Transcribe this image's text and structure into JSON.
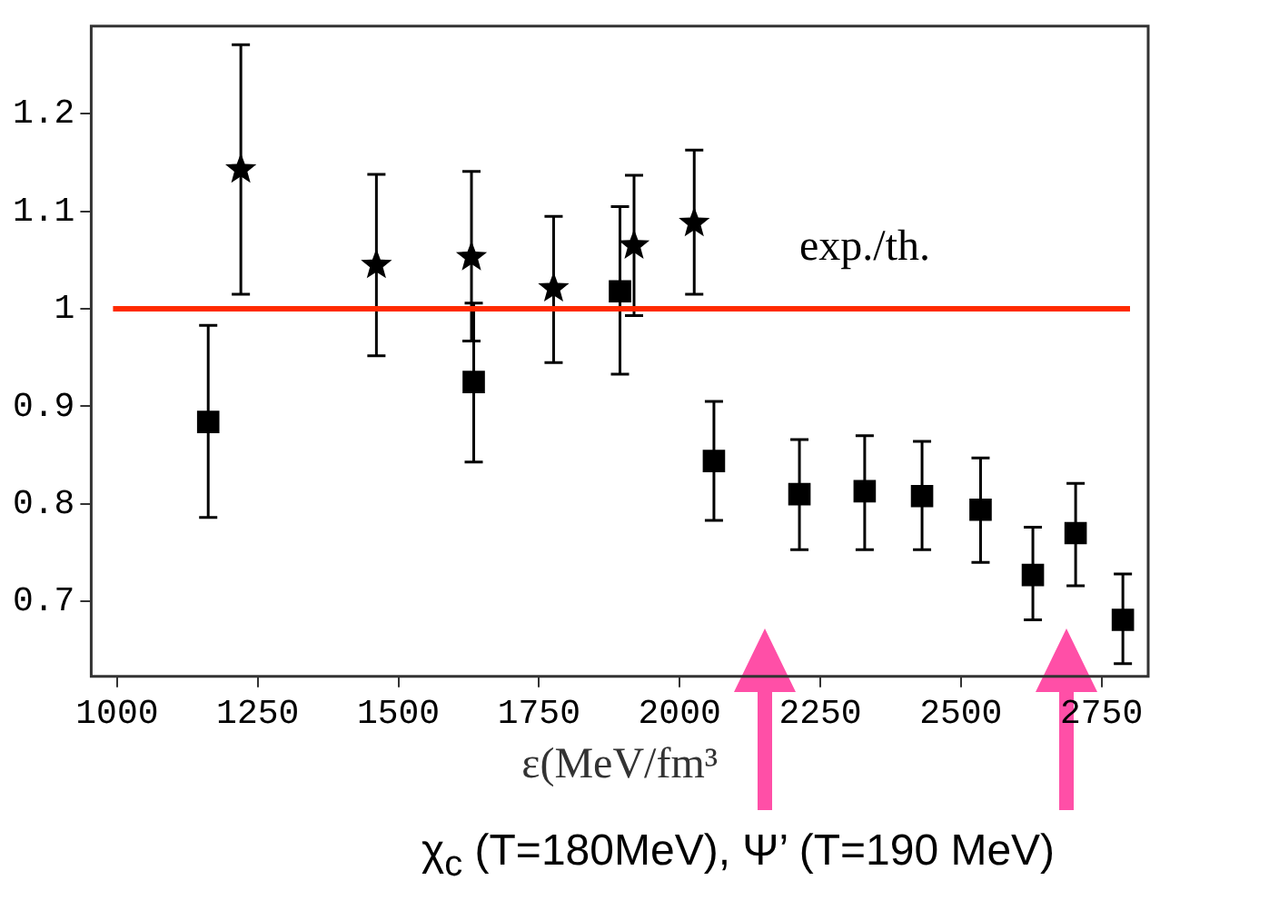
{
  "chart_data": {
    "type": "scatter",
    "xlabel": "ε(MeV/fm³",
    "xlim": [
      954,
      2833
    ],
    "xticks": [
      1000,
      1250,
      1500,
      1750,
      2000,
      2250,
      2500,
      2750
    ],
    "ylim": [
      0.623,
      1.29
    ],
    "yticks": [
      0.7,
      0.8,
      0.9,
      {
        "value": 1,
        "label": "1"
      },
      1.1,
      1.2
    ],
    "grid": false,
    "legend": false,
    "series": [
      {
        "marker": "square",
        "color": "#000000",
        "x": [
          1162,
          1634,
          1894,
          2061,
          2213,
          2329,
          2431,
          2535,
          2628,
          2704,
          2788
        ],
        "values": [
          0.884,
          0.925,
          1.018,
          0.844,
          0.81,
          0.813,
          0.808,
          0.794,
          0.727,
          0.77,
          0.681
        ],
        "errors": [
          [
            0.786,
            0.983
          ],
          [
            0.843,
            1.006
          ],
          [
            0.933,
            1.105
          ],
          [
            0.783,
            0.905
          ],
          [
            0.753,
            0.866
          ],
          [
            0.753,
            0.87
          ],
          [
            0.753,
            0.864
          ],
          [
            0.74,
            0.847
          ],
          [
            0.681,
            0.776
          ],
          [
            0.716,
            0.821
          ],
          [
            0.636,
            0.728
          ]
        ]
      },
      {
        "marker": "star",
        "color": "#000000",
        "x": [
          1220,
          1461,
          1630,
          1776,
          1919,
          2026
        ],
        "values": [
          1.143,
          1.045,
          1.053,
          1.021,
          1.065,
          1.088
        ],
        "errors": [
          [
            1.015,
            1.271
          ],
          [
            0.952,
            1.138
          ],
          [
            0.967,
            1.141
          ],
          [
            0.945,
            1.095
          ],
          [
            0.993,
            1.137
          ],
          [
            1.015,
            1.163
          ]
        ]
      }
    ],
    "ref_lines": [
      {
        "axis": "y",
        "value": 1,
        "color": "#ff2a00"
      }
    ],
    "annotations": [
      "exp./th.",
      "χ$_{c}$ (T=180MeV), Ψ’ (T=190 MeV)"
    ]
  }
}
